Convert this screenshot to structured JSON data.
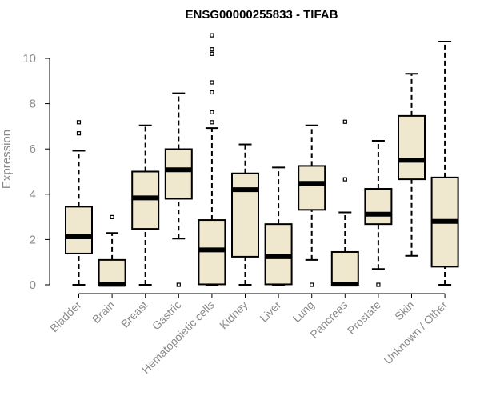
{
  "chart_data": {
    "type": "box",
    "title": "ENSG00000255833 - TIFAB",
    "xlabel": "",
    "ylabel": "Expression",
    "ylim": [
      0,
      11.2
    ],
    "yticks": [
      0,
      2,
      4,
      6,
      8,
      10
    ],
    "colors": {
      "box_fill": "#efe8cf",
      "stroke": "#000000",
      "axis_text": "#8a8a8a"
    },
    "categories": [
      "Bladder",
      "Brain",
      "Breast",
      "Gastric",
      "Hematopoietic cells",
      "Kidney",
      "Liver",
      "Lung",
      "Pancreas",
      "Prostate",
      "Skin",
      "Unknown / Other"
    ],
    "boxes": [
      {
        "category": "Bladder",
        "whisker_low": 0,
        "q1": 1.38,
        "median": 2.12,
        "q3": 3.45,
        "whisker_high": 5.92,
        "outliers": [
          6.69,
          7.18
        ]
      },
      {
        "category": "Brain",
        "whisker_low": 0,
        "q1": 0,
        "median": 0.02,
        "q3": 1.1,
        "whisker_high": 2.29,
        "outliers": [
          2.99
        ]
      },
      {
        "category": "Breast",
        "whisker_low": 0,
        "q1": 2.47,
        "median": 3.84,
        "q3": 5.0,
        "whisker_high": 7.04,
        "outliers": []
      },
      {
        "category": "Gastric",
        "whisker_low": 2.04,
        "q1": 3.8,
        "median": 5.08,
        "q3": 5.99,
        "whisker_high": 8.46,
        "outliers": [
          0.0
        ]
      },
      {
        "category": "Hematopoietic cells",
        "whisker_low": 0,
        "q1": 0.02,
        "median": 1.54,
        "q3": 2.86,
        "whisker_high": 6.92,
        "outliers": [
          7.18,
          7.62,
          8.5,
          8.94,
          10.2,
          10.4,
          11.02
        ]
      },
      {
        "category": "Kidney",
        "whisker_low": 0,
        "q1": 1.24,
        "median": 4.2,
        "q3": 4.92,
        "whisker_high": 6.2,
        "outliers": []
      },
      {
        "category": "Liver",
        "whisker_low": 0,
        "q1": 0.02,
        "median": 1.24,
        "q3": 2.68,
        "whisker_high": 5.18,
        "outliers": []
      },
      {
        "category": "Lung",
        "whisker_low": 1.1,
        "q1": 3.31,
        "median": 4.48,
        "q3": 5.25,
        "whisker_high": 7.04,
        "outliers": [
          0.0
        ]
      },
      {
        "category": "Pancreas",
        "whisker_low": 0,
        "q1": 0,
        "median": 0.03,
        "q3": 1.45,
        "whisker_high": 3.2,
        "outliers": [
          4.66,
          7.2
        ]
      },
      {
        "category": "Prostate",
        "whisker_low": 0.7,
        "q1": 2.68,
        "median": 3.12,
        "q3": 4.24,
        "whisker_high": 6.36,
        "outliers": [
          0.0
        ]
      },
      {
        "category": "Skin",
        "whisker_low": 1.28,
        "q1": 4.66,
        "median": 5.5,
        "q3": 7.46,
        "whisker_high": 9.32,
        "outliers": []
      },
      {
        "category": "Unknown / Other",
        "whisker_low": 0,
        "q1": 0.8,
        "median": 2.8,
        "q3": 4.74,
        "whisker_high": 10.74,
        "outliers": []
      }
    ]
  }
}
